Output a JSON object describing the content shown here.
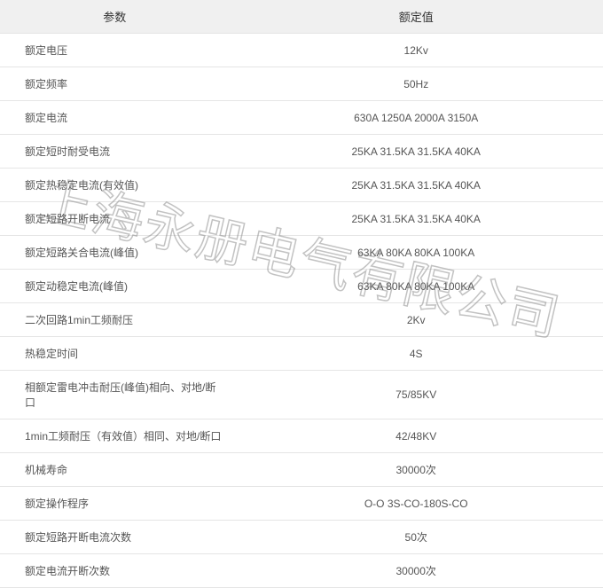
{
  "table": {
    "header_bg": "#f0f0f0",
    "border_color": "#e5e5e5",
    "text_color": "#555555",
    "header_color": "#333333",
    "font_size": 12,
    "header_font_size": 13,
    "columns": [
      {
        "label": "参数",
        "width_pct": 38,
        "align": "left"
      },
      {
        "label": "额定值",
        "width_pct": 62,
        "align": "center"
      }
    ],
    "rows": [
      [
        "额定电压",
        "12Kv"
      ],
      [
        "额定频率",
        "50Hz"
      ],
      [
        "额定电流",
        "630A   1250A   2000A   3150A"
      ],
      [
        "额定短时耐受电流",
        "25KA   31.5KA   31.5KA   40KA"
      ],
      [
        "额定热稳定电流(有效值)",
        "25KA   31.5KA   31.5KA   40KA"
      ],
      [
        "额定短路开断电流",
        "25KA   31.5KA   31.5KA   40KA"
      ],
      [
        "额定短路关合电流(峰值)",
        "63KA   80KA    80KA    100KA"
      ],
      [
        "额定动稳定电流(峰值)",
        "63KA   80KA    80KA    100KA"
      ],
      [
        "二次回路1min工频耐压",
        "2Kv"
      ],
      [
        "热稳定时间",
        "4S"
      ],
      [
        "相额定雷电冲击耐压(峰值)相向、对地/断口",
        "75/85KV"
      ],
      [
        "1min工频耐压（有效值）相同、对地/断口",
        "42/48KV"
      ],
      [
        "机械寿命",
        "30000次"
      ],
      [
        "额定操作程序",
        "O-O 3S-CO-180S-CO"
      ],
      [
        "额定短路开断电流次数",
        "50次"
      ],
      [
        "额定电流开断次数",
        "30000次"
      ]
    ]
  },
  "watermark": {
    "text": "上海永册电气有限公司",
    "rotation_deg": 13,
    "font_size": 58,
    "stroke_color": "rgba(120,120,120,0.45)"
  }
}
